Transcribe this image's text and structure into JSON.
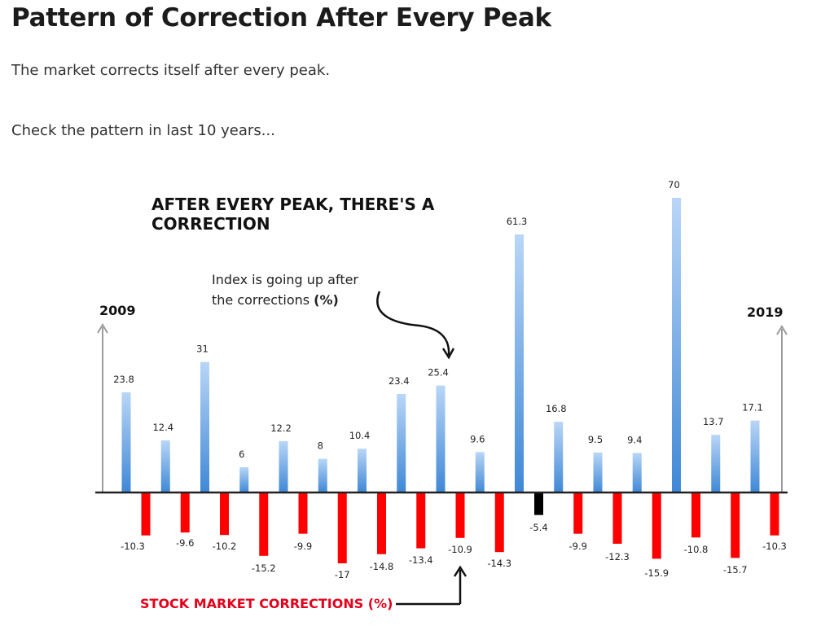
{
  "page": {
    "title": "Pattern of Correction After Every Peak",
    "paragraph1": "The market corrects itself after every peak.",
    "paragraph2": "Check the pattern in last 10 years..."
  },
  "chart_data": {
    "type": "bar",
    "title_line1": "AFTER EVERY PEAK, THERE'S A",
    "title_line2": "CORRECTION",
    "start_label": "2009",
    "end_label": "2019",
    "annotation_line1": "Index is going up after",
    "annotation_line2_prefix": "the corrections ",
    "annotation_line2_bold": "(%)",
    "corrections_label": "STOCK MARKET CORRECTIONS (%)",
    "series": [
      {
        "name": "Index rise (%)",
        "color": "#4a8fd8",
        "values": [
          23.8,
          12.4,
          31,
          6,
          12.2,
          8,
          10.4,
          23.4,
          25.4,
          9.6,
          61.3,
          16.8,
          9.5,
          9.4,
          70,
          13.7,
          17.1
        ]
      },
      {
        "name": "Stock market corrections (%)",
        "color": "#ff0000",
        "highlight_color": "#000000",
        "values": [
          -10.3,
          -9.6,
          -10.2,
          -15.2,
          -9.9,
          -17,
          -14.8,
          -13.4,
          -10.9,
          -14.3,
          -5.4,
          -9.9,
          -12.3,
          -15.9,
          -10.8,
          -15.7,
          -10.3
        ]
      }
    ],
    "highlight_index": 10,
    "ylim": [
      -17,
      70
    ],
    "legend": "none",
    "grid": false
  }
}
